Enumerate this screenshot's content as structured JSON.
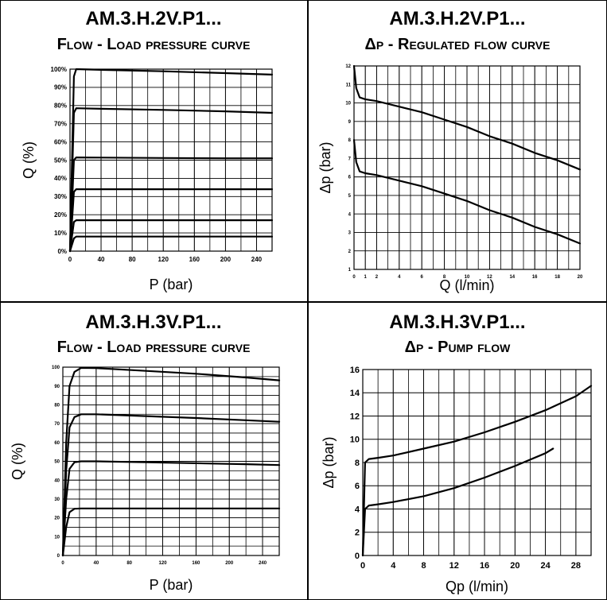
{
  "panels": [
    {
      "title": "AM.3.H.2V.P1...",
      "subtitle": "Flow - Load pressure curve"
    },
    {
      "title": "AM.3.H.2V.P1...",
      "subtitle": "Δp - Regulated flow curve"
    },
    {
      "title": "AM.3.H.3V.P1...",
      "subtitle": "Flow - Load pressure curve"
    },
    {
      "title": "AM.3.H.3V.P1...",
      "subtitle": "Δp - Pump flow"
    }
  ],
  "colors": {
    "line": "#000000",
    "grid": "#000000",
    "background": "#ffffff"
  },
  "chart_data": [
    {
      "type": "line",
      "xlabel": "P (bar)",
      "ylabel": "Q (%)",
      "xlim": [
        0,
        260
      ],
      "ylim": [
        0,
        100
      ],
      "xticks": [
        0,
        40,
        80,
        120,
        160,
        200,
        240
      ],
      "xtick_labels": [
        "0",
        "40",
        "80",
        "120",
        "160",
        "200",
        "240"
      ],
      "yticks": [
        0,
        10,
        20,
        30,
        40,
        50,
        60,
        70,
        80,
        90,
        100
      ],
      "ytick_labels": [
        "0%",
        "10%",
        "20%",
        "30%",
        "40%",
        "50%",
        "60%",
        "70%",
        "80%",
        "90%",
        "100%"
      ],
      "grid": true,
      "series": [
        {
          "x": [
            0,
            5,
            8,
            40,
            120,
            200,
            260
          ],
          "y": [
            0,
            96,
            100,
            99.6,
            98.8,
            97.8,
            97
          ]
        },
        {
          "x": [
            0,
            5,
            8,
            40,
            120,
            200,
            260
          ],
          "y": [
            0,
            76,
            78.5,
            78.2,
            77.6,
            76.8,
            76
          ]
        },
        {
          "x": [
            0,
            5,
            8,
            40,
            120,
            200,
            260
          ],
          "y": [
            0,
            50,
            51.5,
            51.4,
            51.2,
            51,
            51
          ]
        },
        {
          "x": [
            0,
            5,
            8,
            40,
            120,
            200,
            260
          ],
          "y": [
            0,
            32.5,
            34,
            34,
            34,
            34,
            34
          ]
        },
        {
          "x": [
            0,
            5,
            8,
            40,
            120,
            200,
            260
          ],
          "y": [
            0,
            16,
            17,
            17,
            17,
            17,
            17
          ]
        },
        {
          "x": [
            0,
            5,
            8,
            40,
            120,
            200,
            260
          ],
          "y": [
            0,
            7,
            8,
            8,
            8,
            8,
            8
          ]
        }
      ]
    },
    {
      "type": "line",
      "xlabel": "Q (l/min)",
      "ylabel": "Δp (bar)",
      "xlim": [
        0,
        20
      ],
      "ylim": [
        1,
        12
      ],
      "xticks": [
        0,
        1,
        2,
        4,
        6,
        8,
        10,
        12,
        14,
        16,
        18,
        20
      ],
      "xtick_labels": [
        "0",
        "1",
        "2",
        "4",
        "6",
        "8",
        "10",
        "12",
        "14",
        "16",
        "18",
        "20"
      ],
      "yticks": [
        1,
        2,
        3,
        4,
        5,
        6,
        7,
        8,
        9,
        10,
        11,
        12
      ],
      "ytick_labels": [
        "1",
        "2",
        "3",
        "4",
        "5",
        "6",
        "7",
        "8",
        "9",
        "10",
        "11",
        "12"
      ],
      "grid": true,
      "series": [
        {
          "x": [
            0,
            0.2,
            0.5,
            1,
            2,
            4,
            6,
            8,
            10,
            12,
            14,
            16,
            18,
            20
          ],
          "y": [
            12,
            10.8,
            10.3,
            10.2,
            10.1,
            9.8,
            9.5,
            9.1,
            8.7,
            8.2,
            7.8,
            7.3,
            6.9,
            6.4
          ]
        },
        {
          "x": [
            0,
            0.2,
            0.5,
            1,
            2,
            4,
            6,
            8,
            10,
            12,
            14,
            16,
            18,
            20
          ],
          "y": [
            8,
            6.8,
            6.3,
            6.2,
            6.1,
            5.8,
            5.5,
            5.1,
            4.7,
            4.2,
            3.8,
            3.3,
            2.9,
            2.4
          ]
        }
      ]
    },
    {
      "type": "line",
      "xlabel": "P (bar)",
      "ylabel": "Q (%)",
      "xlim": [
        0,
        260
      ],
      "ylim": [
        0,
        100
      ],
      "xticks": [
        0,
        40,
        80,
        120,
        160,
        200,
        240
      ],
      "xtick_labels": [
        "0",
        "40",
        "80",
        "120",
        "160",
        "200",
        "240"
      ],
      "yticks": [
        0,
        10,
        20,
        30,
        40,
        50,
        60,
        70,
        80,
        90,
        100
      ],
      "ytick_labels": [
        "0",
        "10",
        "20",
        "30",
        "40",
        "50",
        "60",
        "70",
        "80",
        "90",
        "100"
      ],
      "grid": true,
      "series": [
        {
          "x": [
            0,
            4,
            8,
            14,
            22,
            40,
            100,
            160,
            220,
            260
          ],
          "y": [
            0,
            60,
            90,
            97.5,
            99.6,
            99.5,
            98,
            96.5,
            94.5,
            93
          ]
        },
        {
          "x": [
            0,
            4,
            8,
            14,
            22,
            40,
            100,
            160,
            220,
            260
          ],
          "y": [
            0,
            45,
            68,
            73.5,
            75,
            75,
            74,
            73,
            71.8,
            71
          ]
        },
        {
          "x": [
            0,
            4,
            8,
            14,
            22,
            40,
            100,
            160,
            220,
            260
          ],
          "y": [
            0,
            30,
            46,
            49.5,
            50,
            50,
            49.5,
            49,
            48.5,
            48
          ]
        },
        {
          "x": [
            0,
            4,
            8,
            14,
            22,
            40,
            100,
            160,
            220,
            260
          ],
          "y": [
            0,
            15,
            23,
            24.8,
            25,
            25,
            25,
            25,
            25,
            25
          ]
        }
      ]
    },
    {
      "type": "line",
      "xlabel": "Qp (l/min)",
      "ylabel": "Δp (bar)",
      "xlim": [
        0,
        30
      ],
      "ylim": [
        0,
        16
      ],
      "xticks": [
        0,
        4,
        8,
        12,
        16,
        20,
        24,
        28
      ],
      "xtick_labels": [
        "0",
        "4",
        "8",
        "12",
        "16",
        "20",
        "24",
        "28"
      ],
      "yticks": [
        0,
        2,
        4,
        6,
        8,
        10,
        12,
        14,
        16
      ],
      "ytick_labels": [
        "0",
        "2",
        "4",
        "6",
        "8",
        "10",
        "12",
        "14",
        "16"
      ],
      "grid": true,
      "series": [
        {
          "x": [
            0,
            0.3,
            0.8,
            2,
            4,
            8,
            12,
            16,
            20,
            24,
            28,
            30
          ],
          "y": [
            0,
            8,
            8.3,
            8.4,
            8.6,
            9.2,
            9.8,
            10.6,
            11.5,
            12.5,
            13.7,
            14.6
          ]
        },
        {
          "x": [
            0,
            0.3,
            0.8,
            2,
            4,
            8,
            12,
            16,
            20,
            24,
            25
          ],
          "y": [
            0,
            4,
            4.3,
            4.4,
            4.6,
            5.1,
            5.8,
            6.7,
            7.7,
            8.8,
            9.2
          ]
        }
      ]
    }
  ]
}
